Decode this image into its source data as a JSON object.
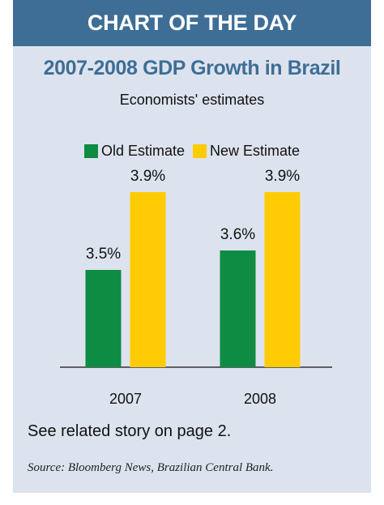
{
  "banner": {
    "label": "CHART OF THE DAY"
  },
  "chart_data": {
    "type": "bar",
    "title": "2007-2008 GDP Growth in Brazil",
    "subtitle": "Economists' estimates",
    "categories": [
      "2007",
      "2008"
    ],
    "series": [
      {
        "name": "Old Estimate",
        "values": [
          3.5,
          3.6
        ],
        "labels": [
          "3.5%",
          "3.6%"
        ],
        "color": "#0e8c43"
      },
      {
        "name": "New Estimate",
        "values": [
          3.9,
          3.9
        ],
        "labels": [
          "3.9%",
          "3.9%"
        ],
        "color": "#ffcb05"
      }
    ],
    "ylim": [
      3.0,
      4.0
    ],
    "grid": false,
    "legend_position": "top-center",
    "baseline_color": "#333333"
  },
  "footer": {
    "note": "See related story on page 2.",
    "source": "Source: Bloomberg News, Brazilian Central Bank."
  },
  "colors": {
    "banner_bg": "#3e6e95",
    "card_bg": "#dde3ee",
    "title_color": "#3e6e95"
  }
}
